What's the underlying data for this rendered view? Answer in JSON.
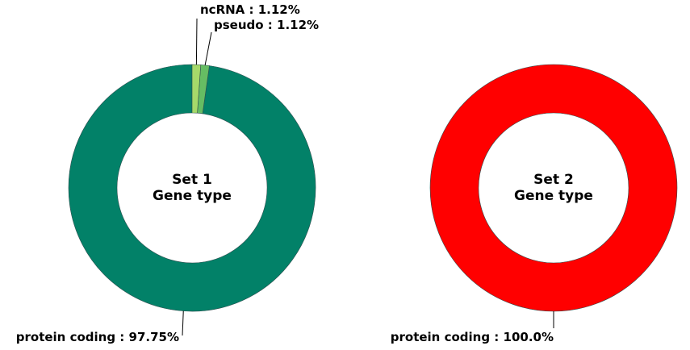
{
  "chart_data": [
    {
      "type": "pie",
      "style": "donut",
      "center_title": [
        "Set 1",
        "Gene type"
      ],
      "slices": [
        {
          "label": "ncRNA",
          "value": 1.12,
          "display": "ncRNA : 1.12%",
          "color": "#a6d96a"
        },
        {
          "label": "pseudo",
          "value": 1.12,
          "display": "pseudo : 1.12%",
          "color": "#66bd63"
        },
        {
          "label": "protein coding",
          "value": 97.75,
          "display": "protein coding : 97.75%",
          "color": "#028168"
        }
      ]
    },
    {
      "type": "pie",
      "style": "donut",
      "center_title": [
        "Set 2",
        "Gene type"
      ],
      "slices": [
        {
          "label": "protein coding",
          "value": 100.0,
          "display": "protein coding : 100.0%",
          "color": "#ff0000"
        }
      ]
    }
  ]
}
